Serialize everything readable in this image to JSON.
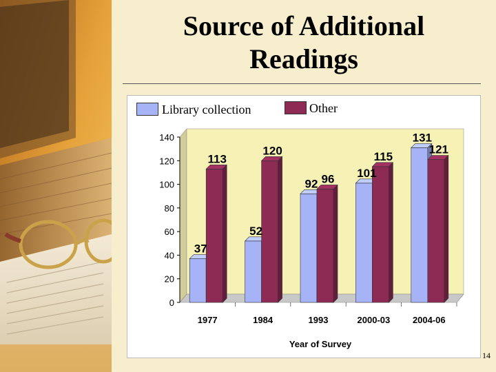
{
  "slide": {
    "title_line1": "Source of Additional",
    "title_line2": "Readings",
    "page_number": "14"
  },
  "colors": {
    "library": "#a7b3f7",
    "other": "#8e2b55",
    "plot_back": "#f6f1b4",
    "floor": "#c8c8c8"
  },
  "chart_data": {
    "type": "bar",
    "xlabel": "Year of Survey",
    "ylabel": "",
    "ylim": [
      0,
      140
    ],
    "yticks": [
      0,
      20,
      40,
      60,
      80,
      100,
      120,
      140
    ],
    "categories": [
      "1977",
      "1984",
      "1993",
      "2000-03",
      "2004-06"
    ],
    "series": [
      {
        "name": "Library collection",
        "values": [
          37,
          52,
          92,
          101,
          131
        ]
      },
      {
        "name": "Other",
        "values": [
          113,
          120,
          96,
          115,
          121
        ]
      }
    ],
    "legend": "top",
    "grid": false,
    "style": "3d"
  }
}
